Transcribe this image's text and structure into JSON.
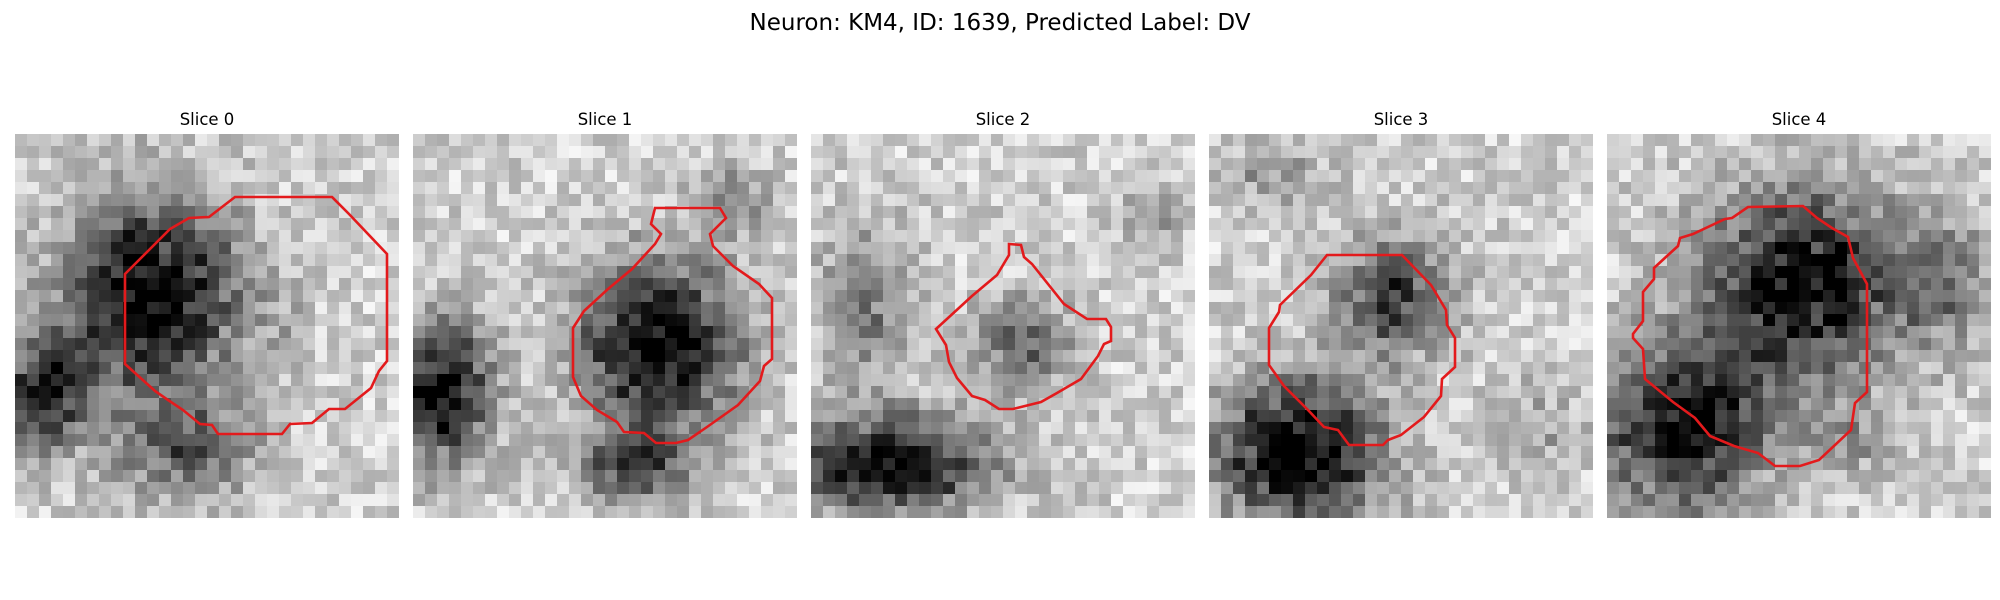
{
  "figure": {
    "title": "Neuron: KM4, ID: 1639, Predicted Label: DV"
  },
  "contour_color": "#e31a1c",
  "panels": [
    {
      "title": "Slice 0"
    },
    {
      "title": "Slice 1"
    },
    {
      "title": "Slice 2"
    },
    {
      "title": "Slice 3"
    },
    {
      "title": "Slice 4"
    }
  ]
}
